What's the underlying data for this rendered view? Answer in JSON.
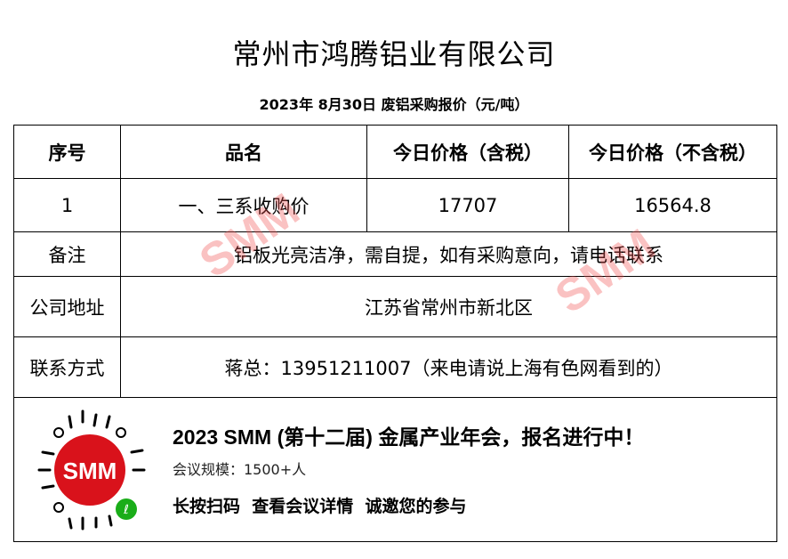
{
  "title": "常州市鸿腾铝业有限公司",
  "subtitle": "2023年 8月30日 废铝采购报价（元/吨）",
  "table": {
    "headers": [
      "序号",
      "品名",
      "今日价格（含税）",
      "今日价格（不含税）"
    ],
    "rows": [
      {
        "no": "1",
        "name": "一、三系收购价",
        "price_tax": "17707",
        "price_notax": "16564.8"
      }
    ],
    "remark_label": "备注",
    "remark": "铝板光亮洁净，需自提，如有采购意向，请电话联系",
    "address_label": "公司地址",
    "address": "江苏省常州市新北区",
    "contact_label": "联系方式",
    "contact": "蒋总：13951211007（来电请说上海有色网看到的）"
  },
  "banner": {
    "headline": "2023 SMM (第十二届) 金属产业年会，报名进行中！",
    "scale": "会议规模：1500+人",
    "cta": "长按扫码  查看会议详情  诚邀您的参与",
    "logo": "SMM"
  },
  "watermark": "SMM",
  "colors": {
    "brand_red": "#d9121b",
    "watermark": "#f05050",
    "mini_program_green": "#1aad19"
  }
}
